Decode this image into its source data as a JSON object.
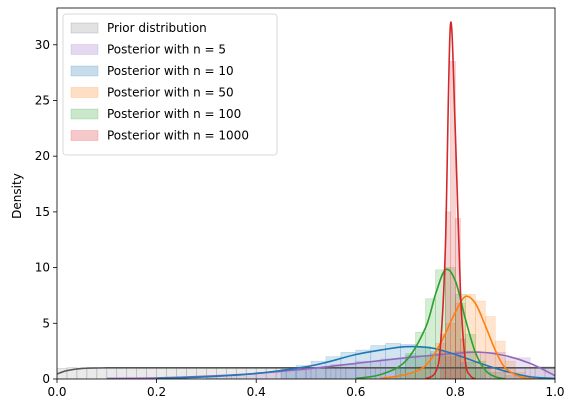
{
  "chart_data": {
    "type": "area",
    "title": "",
    "xlabel": "",
    "ylabel": "Density",
    "xlim": [
      0,
      1
    ],
    "ylim": [
      0,
      33.3
    ],
    "xticks": [
      0.0,
      0.2,
      0.4,
      0.6,
      0.8,
      1.0
    ],
    "xtick_labels": [
      "0.0",
      "0.2",
      "0.4",
      "0.6",
      "0.8",
      "1.0"
    ],
    "yticks": [
      0,
      5,
      10,
      15,
      20,
      25,
      30
    ],
    "ytick_labels": [
      "0",
      "5",
      "10",
      "15",
      "20",
      "25",
      "30"
    ],
    "grid": false,
    "legend_position": "top-left",
    "series": [
      {
        "name": "Prior distribution",
        "color": "#555555",
        "hist_alpha": 0.12,
        "kde": [
          [
            0.0,
            0.45
          ],
          [
            0.02,
            0.75
          ],
          [
            0.05,
            0.95
          ],
          [
            0.1,
            1.0
          ],
          [
            0.2,
            1.0
          ],
          [
            0.3,
            1.0
          ],
          [
            0.4,
            1.0
          ],
          [
            0.5,
            1.0
          ],
          [
            0.6,
            1.0
          ],
          [
            0.7,
            1.0
          ],
          [
            0.8,
            1.0
          ],
          [
            0.9,
            1.0
          ],
          [
            1.0,
            1.0
          ]
        ],
        "hist": [
          [
            0.0,
            0.02,
            0.95
          ],
          [
            0.02,
            0.04,
            1.02
          ],
          [
            0.04,
            0.06,
            0.98
          ],
          [
            0.06,
            0.08,
            1.05
          ],
          [
            0.08,
            0.1,
            0.97
          ],
          [
            0.1,
            0.12,
            1.03
          ],
          [
            0.12,
            0.14,
            0.99
          ],
          [
            0.14,
            0.16,
            1.04
          ],
          [
            0.16,
            0.18,
            0.96
          ],
          [
            0.18,
            0.2,
            1.02
          ],
          [
            0.2,
            0.22,
            1.0
          ],
          [
            0.22,
            0.24,
            0.97
          ],
          [
            0.24,
            0.26,
            1.05
          ],
          [
            0.26,
            0.28,
            0.98
          ],
          [
            0.28,
            0.3,
            1.01
          ],
          [
            0.3,
            0.32,
            0.96
          ],
          [
            0.32,
            0.34,
            1.03
          ],
          [
            0.34,
            0.36,
            1.0
          ],
          [
            0.36,
            0.38,
            0.97
          ],
          [
            0.38,
            0.4,
            1.04
          ],
          [
            0.4,
            0.42,
            0.99
          ],
          [
            0.42,
            0.44,
            1.02
          ],
          [
            0.44,
            0.46,
            0.96
          ],
          [
            0.46,
            0.48,
            1.03
          ],
          [
            0.48,
            0.5,
            1.0
          ],
          [
            0.5,
            0.52,
            0.98
          ],
          [
            0.52,
            0.54,
            1.05
          ],
          [
            0.54,
            0.56,
            0.97
          ],
          [
            0.56,
            0.58,
            1.02
          ],
          [
            0.58,
            0.6,
            0.99
          ],
          [
            0.6,
            0.62,
            1.03
          ],
          [
            0.62,
            0.64,
            0.96
          ],
          [
            0.64,
            0.66,
            1.01
          ],
          [
            0.66,
            0.68,
            1.04
          ],
          [
            0.68,
            0.7,
            0.98
          ],
          [
            0.7,
            0.72,
            1.0
          ],
          [
            0.72,
            0.74,
            0.97
          ],
          [
            0.74,
            0.76,
            1.03
          ],
          [
            0.76,
            0.78,
            1.0
          ],
          [
            0.78,
            0.8,
            0.98
          ],
          [
            0.8,
            0.82,
            1.02
          ],
          [
            0.82,
            0.84,
            0.97
          ],
          [
            0.84,
            0.86,
            1.04
          ],
          [
            0.86,
            0.88,
            0.99
          ],
          [
            0.88,
            0.9,
            1.01
          ],
          [
            0.9,
            0.92,
            0.96
          ],
          [
            0.92,
            0.94,
            1.03
          ],
          [
            0.94,
            0.96,
            1.0
          ],
          [
            0.96,
            0.98,
            0.98
          ],
          [
            0.98,
            1.0,
            1.02
          ]
        ]
      },
      {
        "name": "Posterior with n = 5",
        "color": "#9467bd",
        "hist_alpha": 0.2,
        "kde": [
          [
            0.1,
            0.05
          ],
          [
            0.2,
            0.1
          ],
          [
            0.3,
            0.25
          ],
          [
            0.4,
            0.5
          ],
          [
            0.5,
            0.9
          ],
          [
            0.6,
            1.4
          ],
          [
            0.7,
            1.9
          ],
          [
            0.8,
            2.3
          ],
          [
            0.85,
            2.4
          ],
          [
            0.9,
            2.1
          ],
          [
            0.95,
            1.4
          ],
          [
            1.0,
            0.3
          ]
        ],
        "hist": [
          [
            0.3,
            0.35,
            0.3
          ],
          [
            0.35,
            0.4,
            0.4
          ],
          [
            0.4,
            0.45,
            0.6
          ],
          [
            0.45,
            0.5,
            0.8
          ],
          [
            0.5,
            0.55,
            1.0
          ],
          [
            0.55,
            0.6,
            1.3
          ],
          [
            0.6,
            0.65,
            1.6
          ],
          [
            0.65,
            0.7,
            1.8
          ],
          [
            0.7,
            0.75,
            2.1
          ],
          [
            0.75,
            0.8,
            2.3
          ],
          [
            0.8,
            0.85,
            2.5
          ],
          [
            0.85,
            0.9,
            2.4
          ],
          [
            0.9,
            0.95,
            1.9
          ],
          [
            0.95,
            1.0,
            1.1
          ]
        ]
      },
      {
        "name": "Posterior with n = 10",
        "color": "#1f77b4",
        "hist_alpha": 0.2,
        "kde": [
          [
            0.2,
            0.05
          ],
          [
            0.3,
            0.2
          ],
          [
            0.4,
            0.5
          ],
          [
            0.5,
            1.1
          ],
          [
            0.55,
            1.6
          ],
          [
            0.6,
            2.2
          ],
          [
            0.65,
            2.6
          ],
          [
            0.7,
            2.9
          ],
          [
            0.75,
            2.8
          ],
          [
            0.8,
            2.2
          ],
          [
            0.85,
            1.4
          ],
          [
            0.9,
            0.7
          ],
          [
            0.95,
            0.2
          ],
          [
            1.0,
            0.05
          ]
        ],
        "hist": [
          [
            0.45,
            0.48,
            0.9
          ],
          [
            0.48,
            0.51,
            1.2
          ],
          [
            0.51,
            0.54,
            1.6
          ],
          [
            0.54,
            0.57,
            2.0
          ],
          [
            0.57,
            0.6,
            2.4
          ],
          [
            0.6,
            0.63,
            2.6
          ],
          [
            0.63,
            0.66,
            3.0
          ],
          [
            0.66,
            0.69,
            3.2
          ],
          [
            0.69,
            0.72,
            3.1
          ],
          [
            0.72,
            0.75,
            2.9
          ],
          [
            0.75,
            0.78,
            2.5
          ],
          [
            0.78,
            0.81,
            2.0
          ],
          [
            0.81,
            0.84,
            1.5
          ],
          [
            0.84,
            0.87,
            1.0
          ],
          [
            0.87,
            0.9,
            0.6
          ],
          [
            0.9,
            0.93,
            0.3
          ]
        ]
      },
      {
        "name": "Posterior with n = 50",
        "color": "#ff7f0e",
        "hist_alpha": 0.2,
        "kde": [
          [
            0.65,
            0.05
          ],
          [
            0.7,
            0.4
          ],
          [
            0.74,
            1.2
          ],
          [
            0.77,
            3.2
          ],
          [
            0.8,
            6.0
          ],
          [
            0.82,
            7.4
          ],
          [
            0.84,
            6.8
          ],
          [
            0.86,
            4.8
          ],
          [
            0.88,
            2.6
          ],
          [
            0.9,
            1.0
          ],
          [
            0.93,
            0.2
          ],
          [
            0.96,
            0.02
          ]
        ],
        "hist": [
          [
            0.7,
            0.72,
            0.5
          ],
          [
            0.72,
            0.74,
            1.1
          ],
          [
            0.74,
            0.76,
            2.0
          ],
          [
            0.76,
            0.78,
            3.2
          ],
          [
            0.78,
            0.8,
            5.0
          ],
          [
            0.8,
            0.82,
            6.8
          ],
          [
            0.82,
            0.84,
            7.6
          ],
          [
            0.84,
            0.86,
            7.0
          ],
          [
            0.86,
            0.88,
            5.6
          ],
          [
            0.88,
            0.9,
            3.4
          ],
          [
            0.9,
            0.92,
            1.6
          ],
          [
            0.92,
            0.94,
            0.6
          ]
        ]
      },
      {
        "name": "Posterior with n = 100",
        "color": "#2ca02c",
        "hist_alpha": 0.2,
        "kde": [
          [
            0.6,
            0.05
          ],
          [
            0.65,
            0.4
          ],
          [
            0.7,
            1.6
          ],
          [
            0.74,
            4.6
          ],
          [
            0.76,
            7.6
          ],
          [
            0.78,
            9.8
          ],
          [
            0.8,
            8.8
          ],
          [
            0.82,
            5.4
          ],
          [
            0.84,
            2.4
          ],
          [
            0.86,
            0.8
          ],
          [
            0.88,
            0.2
          ],
          [
            0.9,
            0.02
          ]
        ],
        "hist": [
          [
            0.68,
            0.7,
            1.0
          ],
          [
            0.7,
            0.72,
            2.3
          ],
          [
            0.72,
            0.74,
            4.2
          ],
          [
            0.74,
            0.76,
            7.2
          ],
          [
            0.76,
            0.78,
            9.8
          ],
          [
            0.78,
            0.8,
            10.0
          ],
          [
            0.8,
            0.82,
            7.6
          ],
          [
            0.82,
            0.84,
            4.0
          ],
          [
            0.84,
            0.86,
            1.6
          ]
        ]
      },
      {
        "name": "Posterior with n = 1000",
        "color": "#d62728",
        "hist_alpha": 0.2,
        "kde": [
          [
            0.74,
            0.02
          ],
          [
            0.76,
            0.6
          ],
          [
            0.77,
            3.0
          ],
          [
            0.78,
            12.0
          ],
          [
            0.79,
            31.8
          ],
          [
            0.8,
            22.0
          ],
          [
            0.81,
            8.0
          ],
          [
            0.82,
            1.6
          ],
          [
            0.83,
            0.3
          ],
          [
            0.84,
            0.02
          ]
        ],
        "hist": [
          [
            0.77,
            0.78,
            4.0
          ],
          [
            0.78,
            0.79,
            15.0
          ],
          [
            0.79,
            0.8,
            28.5
          ],
          [
            0.8,
            0.81,
            14.4
          ],
          [
            0.81,
            0.82,
            3.6
          ]
        ]
      }
    ]
  }
}
